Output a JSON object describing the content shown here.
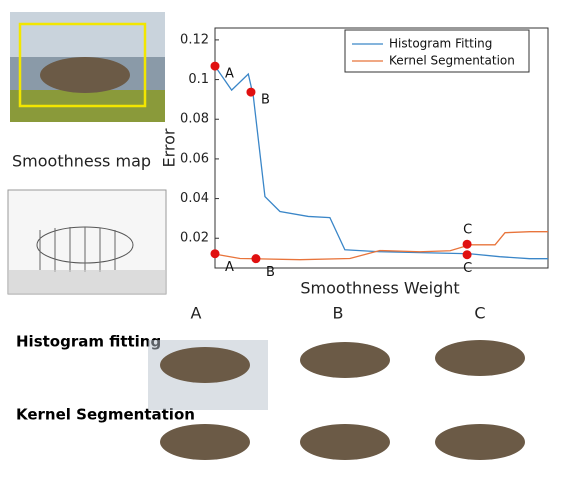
{
  "chart_data": {
    "type": "line",
    "x_label": "Smoothness Weight",
    "y_label": "Error",
    "xlim": [
      0,
      1
    ],
    "ylim": [
      0.005,
      0.126
    ],
    "yticks": [
      0.02,
      0.04,
      0.06,
      0.08,
      {
        "value": 0.1,
        "label": "0.1"
      },
      0.12
    ],
    "series": [
      {
        "name": "Histogram Fitting",
        "color": "#3a86c8",
        "x": [
          0,
          0.05,
          0.1,
          0.115,
          0.15,
          0.195,
          0.28,
          0.345,
          0.39,
          0.495,
          0.765,
          0.855,
          0.945,
          1
        ],
        "values": [
          0.1068,
          0.0947,
          0.1028,
          0.0917,
          0.041,
          0.0335,
          0.031,
          0.0304,
          0.0142,
          0.0132,
          0.0122,
          0.0107,
          0.0097,
          0.0097
        ]
      },
      {
        "name": "Kernel Segmentation",
        "color": "#e8743b",
        "x": [
          0,
          0.075,
          0.255,
          0.405,
          0.495,
          0.615,
          0.706,
          0.766,
          0.841,
          0.871,
          0.946,
          1
        ],
        "values": [
          0.012,
          0.0098,
          0.0092,
          0.0098,
          0.0138,
          0.0132,
          0.0137,
          0.0167,
          0.0167,
          0.0228,
          0.0233,
          0.0233
        ]
      }
    ],
    "markers": [
      {
        "label": "A",
        "x": 0,
        "y": 0.1068
      },
      {
        "label": "B",
        "x": 0.108,
        "y": 0.0937
      },
      {
        "label": "A",
        "x": 0,
        "y": 0.0122
      },
      {
        "label": "B",
        "x": 0.123,
        "y": 0.0097
      },
      {
        "label": "C",
        "x": 0.757,
        "y": 0.017
      },
      {
        "label": "C",
        "x": 0.757,
        "y": 0.0117
      }
    ]
  },
  "figure": {
    "map_label": "Smoothness map",
    "columns": [
      "A",
      "B",
      "C"
    ],
    "rows": [
      "Histogram fitting",
      "Kernel Segmentation"
    ]
  }
}
